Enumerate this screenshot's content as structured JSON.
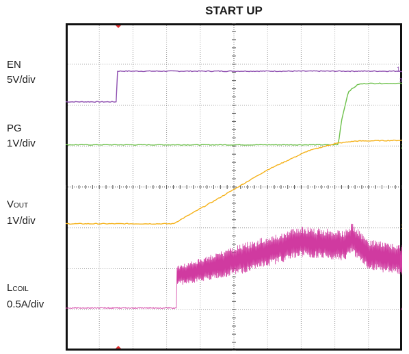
{
  "chart_data": {
    "type": "line",
    "title": "START UP",
    "grid": true,
    "x_divisions": 10,
    "y_divisions": 8,
    "series": [
      {
        "name": "EN",
        "scale": "5V/div",
        "color": "#8e4fb0",
        "marker": "1",
        "x": [
          0,
          1.5,
          1.5,
          10
        ],
        "y": [
          -0.15,
          -0.15,
          0.6,
          0.6
        ]
      },
      {
        "name": "PG",
        "scale": "1V/div",
        "color": "#6cc04a",
        "marker": "2",
        "x": [
          0,
          8.1,
          8.2,
          8.4,
          8.7,
          9.0,
          10
        ],
        "y": [
          0,
          0,
          0.6,
          1.3,
          1.48,
          1.5,
          1.5
        ]
      },
      {
        "name": "VOUT",
        "scale": "1V/div",
        "color": "#f5b21a",
        "marker": "1",
        "x": [
          0,
          3.2,
          4.5,
          6.0,
          7.2,
          8.0,
          8.6,
          10
        ],
        "y": [
          0,
          0,
          0.6,
          1.32,
          1.78,
          1.96,
          2.02,
          2.04
        ]
      },
      {
        "name": "LCOIL",
        "scale": "0.5A/div",
        "color": "#d03aa0",
        "marker": "4",
        "x": [
          0,
          3.3,
          3.3,
          5.0,
          6.5,
          7.0,
          8.3,
          8.5,
          9.0,
          10
        ],
        "y": [
          0,
          0,
          0.78,
          1.15,
          1.5,
          1.62,
          1.52,
          1.72,
          1.3,
          1.18
        ]
      }
    ]
  },
  "labels": {
    "en_name": "EN",
    "en_scale": "5V/div",
    "pg_name": "PG",
    "pg_scale": "1V/div",
    "vout_main": "V",
    "vout_sub": "OUT",
    "vout_scale": "1V/div",
    "lcoil_main": "L",
    "lcoil_sub": "COIL",
    "lcoil_scale": "0.5A/div"
  },
  "markers": {
    "m1": "1",
    "m2": "2",
    "m3": "1",
    "m4": "4",
    "m5": "3"
  }
}
